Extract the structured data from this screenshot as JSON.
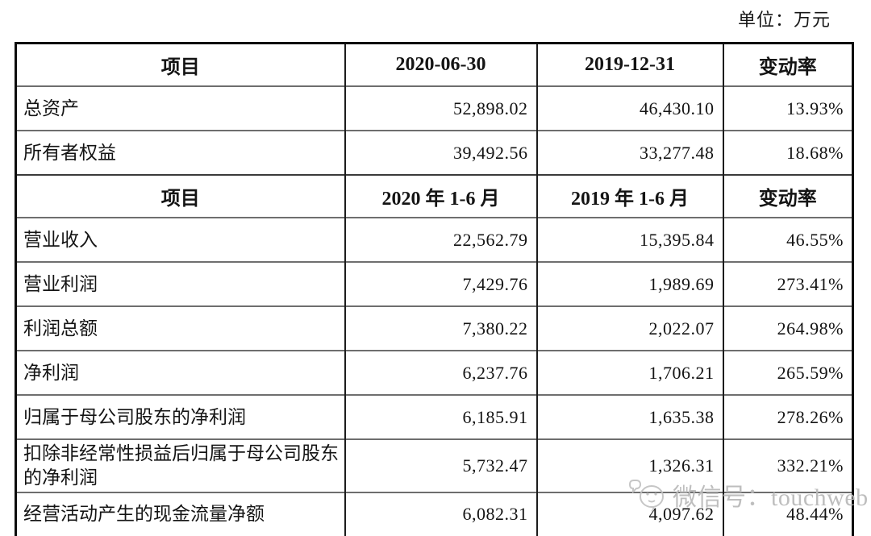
{
  "unit_label": "单位：万元",
  "watermark": {
    "icon": "wechat-mascot-icon",
    "text": "微信号：touchweb"
  },
  "table": {
    "column_keys": [
      "item",
      "current",
      "prior",
      "change"
    ],
    "sections": [
      {
        "header": [
          "项目",
          "2020-06-30",
          "2019-12-31",
          "变动率"
        ],
        "rows": [
          {
            "item": "总资产",
            "current": "52,898.02",
            "prior": "46,430.10",
            "change": "13.93%"
          },
          {
            "item": "所有者权益",
            "current": "39,492.56",
            "prior": "33,277.48",
            "change": "18.68%"
          }
        ]
      },
      {
        "header": [
          "项目",
          "2020 年 1-6 月",
          "2019 年 1-6 月",
          "变动率"
        ],
        "rows": [
          {
            "item": "营业收入",
            "current": "22,562.79",
            "prior": "15,395.84",
            "change": "46.55%"
          },
          {
            "item": "营业利润",
            "current": "7,429.76",
            "prior": "1,989.69",
            "change": "273.41%"
          },
          {
            "item": "利润总额",
            "current": "7,380.22",
            "prior": "2,022.07",
            "change": "264.98%"
          },
          {
            "item": "净利润",
            "current": "6,237.76",
            "prior": "1,706.21",
            "change": "265.59%"
          },
          {
            "item": "归属于母公司股东的净利润",
            "current": "6,185.91",
            "prior": "1,635.38",
            "change": "278.26%"
          },
          {
            "item": "扣除非经常性损益后归属于母公司股东的净利润",
            "current": "5,732.47",
            "prior": "1,326.31",
            "change": "332.21%"
          },
          {
            "item": "经营活动产生的现金流量净额",
            "current": "6,082.31",
            "prior": "4,097.62",
            "change": "48.44%"
          }
        ]
      }
    ]
  }
}
